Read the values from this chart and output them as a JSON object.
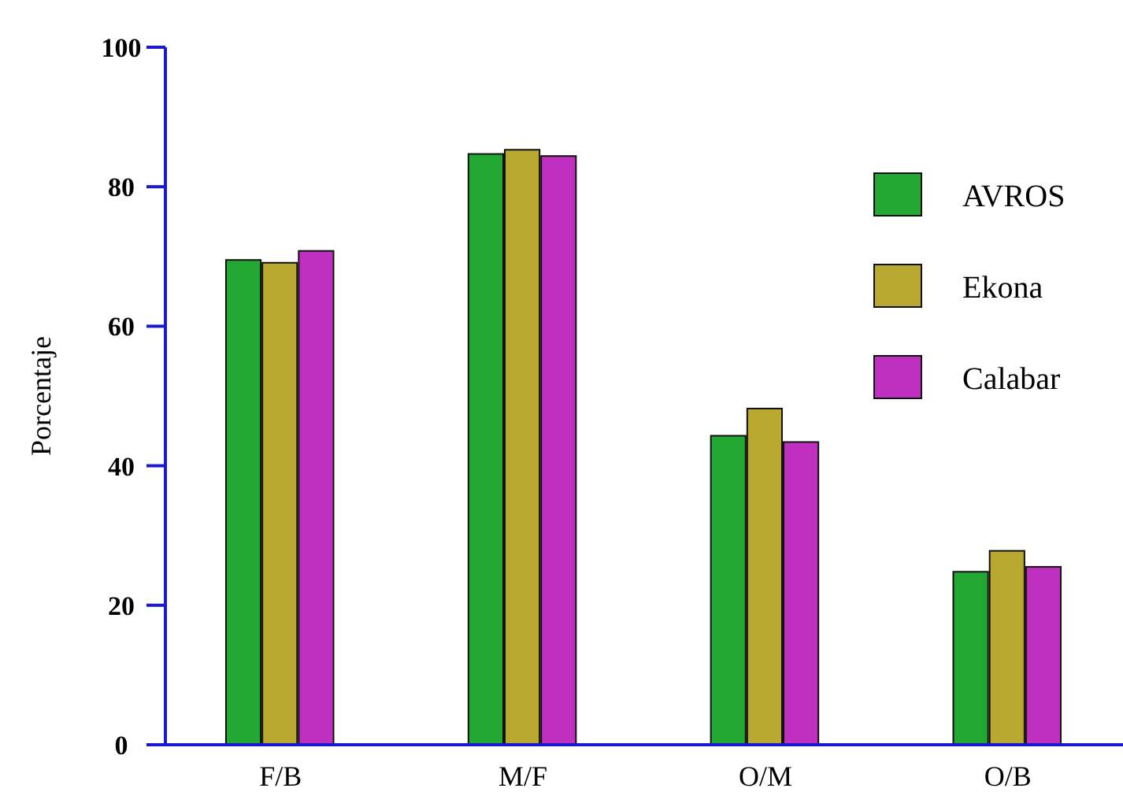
{
  "chart_data": {
    "type": "bar",
    "ylabel": "Porcentaje",
    "categories": [
      "F/B",
      "M/F",
      "O/M",
      "O/B"
    ],
    "series": [
      {
        "name": "AVROS",
        "color": "#22a832",
        "values": [
          69.5,
          84.7,
          44.3,
          24.8
        ]
      },
      {
        "name": "Ekona",
        "color": "#b8a830",
        "values": [
          69.1,
          85.3,
          48.2,
          27.8
        ]
      },
      {
        "name": "Calabar",
        "color": "#c030c0",
        "values": [
          70.8,
          84.4,
          43.4,
          25.5
        ]
      }
    ],
    "ylim": [
      0,
      100
    ],
    "yticks": [
      0,
      20,
      40,
      60,
      80,
      100
    ],
    "grid": false,
    "legend": "right"
  }
}
